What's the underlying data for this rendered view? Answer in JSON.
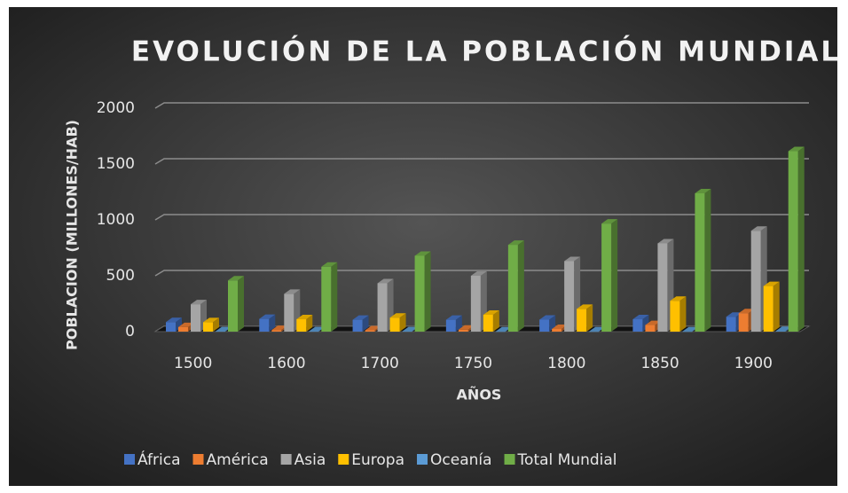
{
  "chart_data": {
    "type": "bar3d",
    "title": "EVOLUCIÓN DE LA POBLACIÓN MUNDIAL",
    "x_label": "AÑOS",
    "y_label": "POBLACION (MILLONES/HAB)",
    "categories": [
      "1500",
      "1600",
      "1700",
      "1750",
      "1800",
      "1850",
      "1900"
    ],
    "series": [
      {
        "name": "África",
        "color": "#4472c4",
        "values": [
          85,
          114,
          106,
          106,
          107,
          111,
          133
        ]
      },
      {
        "name": "América",
        "color": "#ed7d31",
        "values": [
          41,
          15,
          12,
          18,
          24,
          59,
          165
        ]
      },
      {
        "name": "Asia",
        "color": "#a5a5a5",
        "values": [
          245,
          338,
          433,
          500,
          631,
          790,
          903
        ]
      },
      {
        "name": "Europa",
        "color": "#ffc000",
        "values": [
          84,
          111,
          125,
          151,
          203,
          276,
          408
        ]
      },
      {
        "name": "Oceanía",
        "color": "#5b9bd5",
        "values": [
          3,
          3,
          3,
          2,
          2,
          2,
          6
        ]
      },
      {
        "name": "Total Mundial",
        "color": "#70ad47",
        "values": [
          458,
          581,
          679,
          777,
          967,
          1238,
          1615
        ]
      }
    ],
    "ylim": [
      0,
      2000
    ],
    "yticks": [
      0,
      500,
      1000,
      1500,
      2000
    ],
    "grid": true,
    "legend": "bottom"
  }
}
